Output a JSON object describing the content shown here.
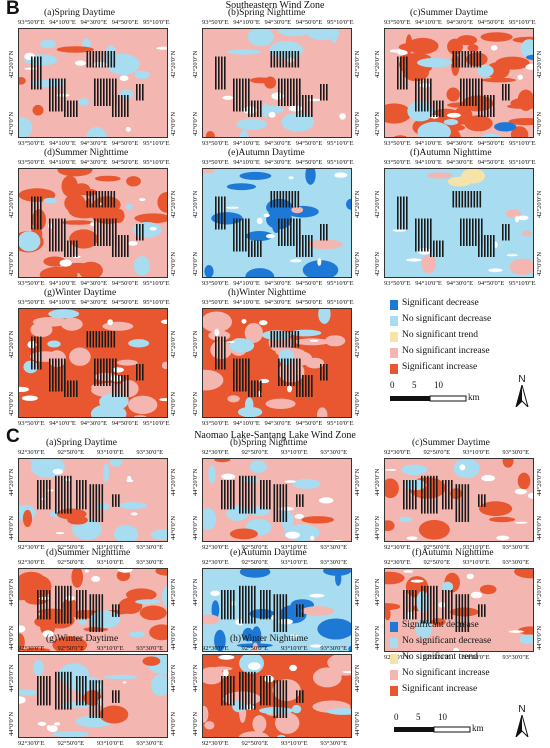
{
  "colors": {
    "significant_decrease": "#1e78d6",
    "no_significant_decrease": "#a8dcf0",
    "no_significant_trend": "#f5e3a8",
    "no_significant_increase": "#f4b6b0",
    "significant_increase": "#e8572f"
  },
  "sectionB": {
    "letter": "B",
    "title": "Southeastern Wind Zone",
    "xticks": [
      "93°50'0\"E",
      "94°10'0\"E",
      "94°30'0\"E",
      "94°50'0\"E",
      "95°10'0\"E"
    ],
    "yticks": [
      "42°20'0\"N",
      "42°0'0\"N"
    ],
    "panels": [
      {
        "title": "(a)Spring Daytime",
        "pattern": "increase"
      },
      {
        "title": "(b)Spring Nighttime",
        "pattern": "increase"
      },
      {
        "title": "(c)Summer Daytime",
        "pattern": "mixed-strong"
      },
      {
        "title": "(d)Summer Nighttime",
        "pattern": "mixed"
      },
      {
        "title": "(e)Autumn Daytime",
        "pattern": "decrease"
      },
      {
        "title": "(f)Autumn Nighttime",
        "pattern": "decrease-light"
      },
      {
        "title": "(g)Winter Daytime",
        "pattern": "strong-increase"
      },
      {
        "title": "(h)Winter Nighttime",
        "pattern": "strong-increase"
      }
    ],
    "legend": {
      "items": [
        "Significant decrease",
        "No significant decrease",
        "No significant trend",
        "No significant increase",
        "Significant increase"
      ],
      "scale_labels": [
        "0",
        "5",
        "10"
      ],
      "scale_unit": "km",
      "north": "N"
    }
  },
  "sectionC": {
    "letter": "C",
    "title": "Naomao Lake-Santang Lake Wind Zone",
    "xticks": [
      "92°30'0\"E",
      "92°50'0\"E",
      "93°10'0\"E",
      "93°30'0\"E"
    ],
    "yticks": [
      "44°20'0\"N",
      "44°0'0\"N"
    ],
    "panels": [
      {
        "title": "(a)Spring Daytime",
        "pattern": "increase"
      },
      {
        "title": "(b)Spring Nighttime",
        "pattern": "increase"
      },
      {
        "title": "(c)Summer Daytime",
        "pattern": "increase-spots"
      },
      {
        "title": "(d)Summer Nighttime",
        "pattern": "mixed"
      },
      {
        "title": "(e)Autumn Daytime",
        "pattern": "decrease"
      },
      {
        "title": "(f)Autumn Nighttime",
        "pattern": "increase-spots"
      },
      {
        "title": "(g)Winter Daytime",
        "pattern": "increase"
      },
      {
        "title": "(h)Winter Nighttime",
        "pattern": "strong-increase"
      }
    ],
    "legend": {
      "items": [
        "Significant decrease",
        "No significant decrease",
        "No significant trend",
        "No significant increase",
        "Significant increase"
      ],
      "scale_labels": [
        "0",
        "5",
        "10"
      ],
      "scale_unit": "km",
      "north": "N"
    }
  }
}
